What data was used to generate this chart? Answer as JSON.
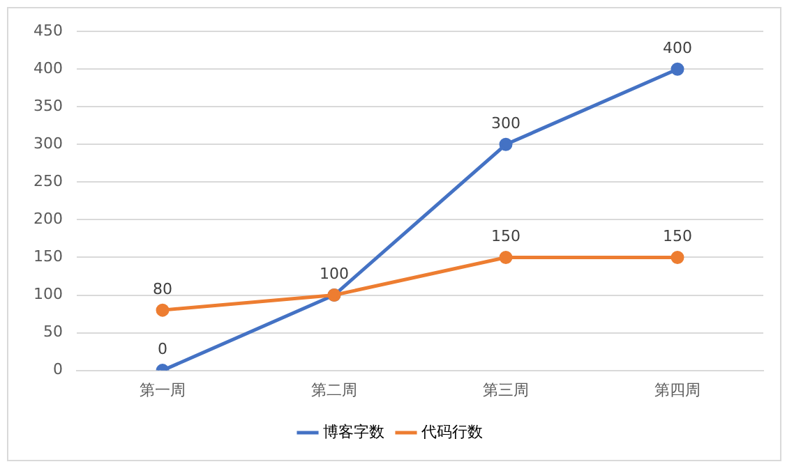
{
  "chart_data": {
    "type": "line",
    "categories": [
      "第一周",
      "第二周",
      "第三周",
      "第四周"
    ],
    "series": [
      {
        "name": "博客字数",
        "color": "#4472c4",
        "values": [
          0,
          100,
          300,
          400
        ],
        "value_labels": [
          "0",
          "100",
          "300",
          "400"
        ]
      },
      {
        "name": "代码行数",
        "color": "#ed7d31",
        "values": [
          80,
          100,
          150,
          150
        ],
        "value_labels": [
          "80",
          null,
          "150",
          "150"
        ]
      }
    ],
    "ylim": [
      0,
      450
    ],
    "yticks": [
      0,
      50,
      100,
      150,
      200,
      250,
      300,
      350,
      400,
      450
    ],
    "grid": "y",
    "legend": "bottom",
    "marker": "circle",
    "line_style": "solid"
  }
}
